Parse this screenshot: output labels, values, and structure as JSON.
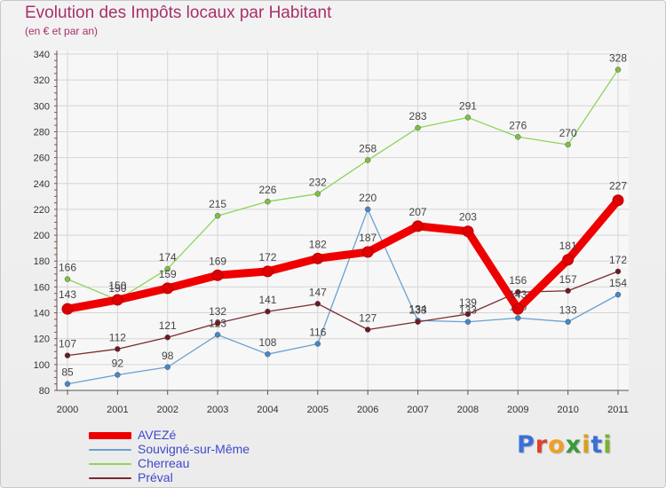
{
  "title": "Evolution des Impôts locaux par Habitant",
  "subtitle": "(en € et par an)",
  "logo_letters": [
    {
      "ch": "P",
      "color": "#3a6fd8"
    },
    {
      "ch": "r",
      "color": "#e0402a"
    },
    {
      "ch": "o",
      "color": "#f0a020"
    },
    {
      "ch": "x",
      "color": "#3a9a3a"
    },
    {
      "ch": "i",
      "color": "#d8a020"
    },
    {
      "ch": "t",
      "color": "#3a6fd8"
    },
    {
      "ch": "i",
      "color": "#7ab030"
    }
  ],
  "colors": {
    "grid": "#d6d6d6",
    "axis": "#555555",
    "tick_text": "#333333",
    "label_text": "#444444"
  },
  "chart_data": {
    "type": "line",
    "title": "Evolution des Impôts locaux par Habitant",
    "subtitle": "(en € et par an)",
    "xlabel": "",
    "ylabel": "",
    "ylim": [
      80,
      340
    ],
    "yticks": [
      80,
      100,
      120,
      140,
      160,
      180,
      200,
      220,
      240,
      260,
      280,
      300,
      320,
      340
    ],
    "categories": [
      "2000",
      "2001",
      "2002",
      "2003",
      "2004",
      "2005",
      "2006",
      "2007",
      "2008",
      "2009",
      "2010",
      "2011"
    ],
    "grid": true,
    "legend_position": "bottom-left",
    "series": [
      {
        "name": "Cherreau",
        "color": "#8fd45a",
        "dot": "#7cc23e",
        "width": 1.3,
        "r": 3,
        "emphasis": false,
        "values": [
          166,
          150,
          174,
          215,
          226,
          232,
          258,
          283,
          291,
          276,
          270,
          328
        ]
      },
      {
        "name": "Souvigné-sur-Même",
        "color": "#6aa0cf",
        "dot": "#4488c8",
        "width": 1.3,
        "r": 3,
        "emphasis": false,
        "values": [
          85,
          92,
          98,
          123,
          108,
          116,
          220,
          134,
          133,
          136,
          133,
          154
        ]
      },
      {
        "name": "Préval",
        "color": "#7a2a30",
        "dot": "#6a1a20",
        "width": 1.3,
        "r": 3,
        "emphasis": false,
        "values": [
          107,
          112,
          121,
          132,
          141,
          147,
          127,
          133,
          139,
          156,
          157,
          172
        ]
      },
      {
        "name": "AVEZé",
        "color": "#ee0000",
        "dot": "#dd0000",
        "width": 9,
        "r": 6,
        "emphasis": true,
        "values": [
          143,
          150,
          159,
          169,
          172,
          182,
          187,
          207,
          203,
          143,
          181,
          227
        ]
      }
    ],
    "legend_order": [
      "AVEZé",
      "Souvigné-sur-Même",
      "Cherreau",
      "Préval"
    ]
  }
}
